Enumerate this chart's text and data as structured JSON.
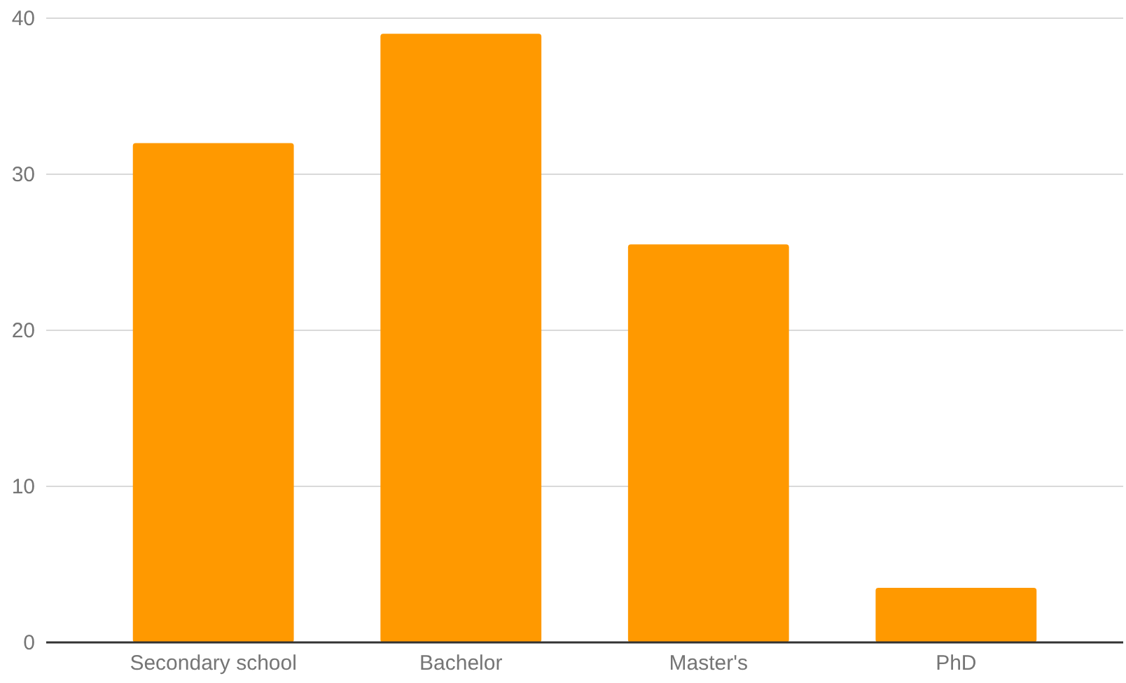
{
  "chart_data": {
    "type": "bar",
    "categories": [
      "Secondary school",
      "Bachelor",
      "Master's",
      "PhD"
    ],
    "values": [
      32,
      39,
      25.5,
      3.5
    ],
    "color": "#ff9900",
    "ylim": [
      0,
      40
    ],
    "yticks": [
      0,
      10,
      20,
      30,
      40
    ],
    "grid": "y"
  }
}
